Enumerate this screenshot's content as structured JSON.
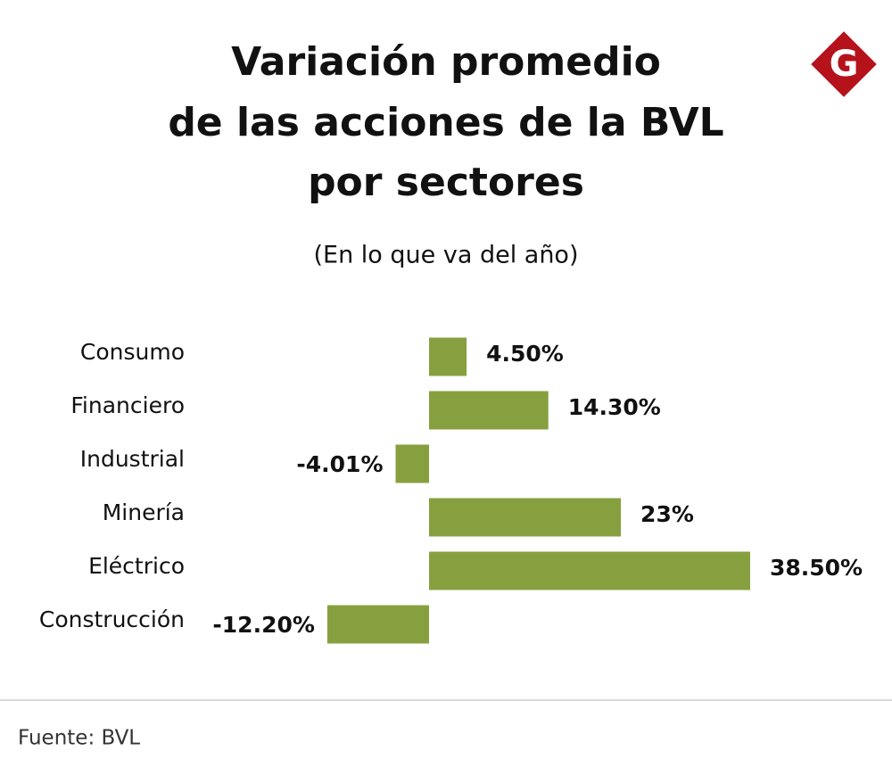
{
  "chart_data": {
    "type": "bar",
    "orientation": "horizontal",
    "title": [
      "Variación promedio",
      "de las acciones de la BVL",
      "por sectores"
    ],
    "subtitle": "(En lo que va del año)",
    "categories": [
      "Consumo",
      "Financiero",
      "Industrial",
      "Minería",
      "Eléctrico",
      "Construcción"
    ],
    "values": [
      4.5,
      14.3,
      -4.01,
      23,
      38.5,
      -12.2
    ],
    "value_labels": [
      "4.50%",
      "14.30%",
      "-4.01%",
      "23%",
      "38.50%",
      "-12.20%"
    ],
    "color": "#87a03f",
    "source": "Fuente: BVL",
    "logo": "G"
  }
}
